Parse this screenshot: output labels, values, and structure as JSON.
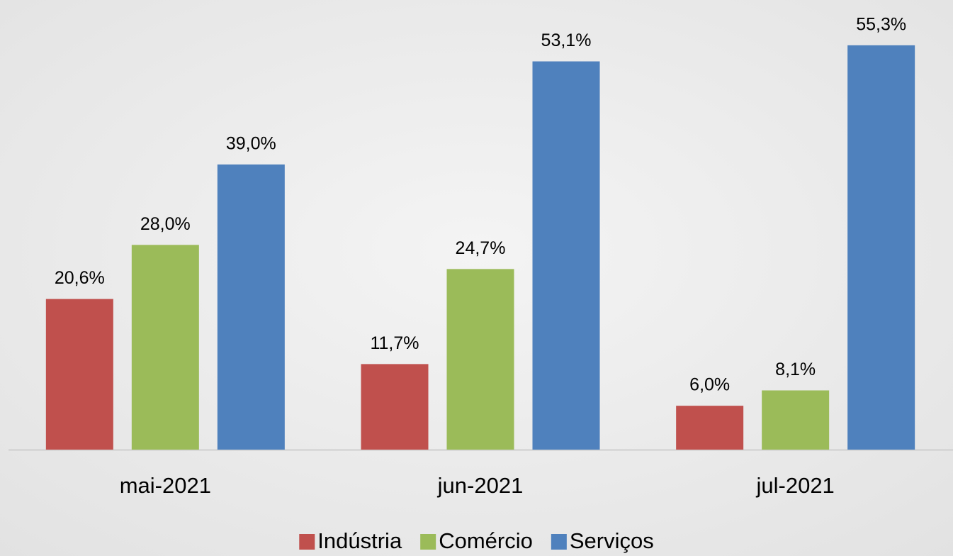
{
  "chart_data": {
    "type": "bar",
    "categories": [
      "mai-2021",
      "jun-2021",
      "jul-2021"
    ],
    "series": [
      {
        "name": "Indústria",
        "color": "#c0504d",
        "values": [
          20.6,
          11.7,
          6.0
        ],
        "value_labels": [
          "20,6%",
          "11,7%",
          "6,0%"
        ]
      },
      {
        "name": "Comércio",
        "color": "#9bbb59",
        "values": [
          28.0,
          24.7,
          8.1
        ],
        "value_labels": [
          "28,0%",
          "24,7%",
          "8,1%"
        ]
      },
      {
        "name": "Serviços",
        "color": "#4f81bd",
        "values": [
          39.0,
          53.1,
          55.3
        ],
        "value_labels": [
          "39,0%",
          "53,1%",
          "55,3%"
        ]
      }
    ],
    "ylim": [
      0,
      60
    ],
    "legend": "bottom"
  }
}
